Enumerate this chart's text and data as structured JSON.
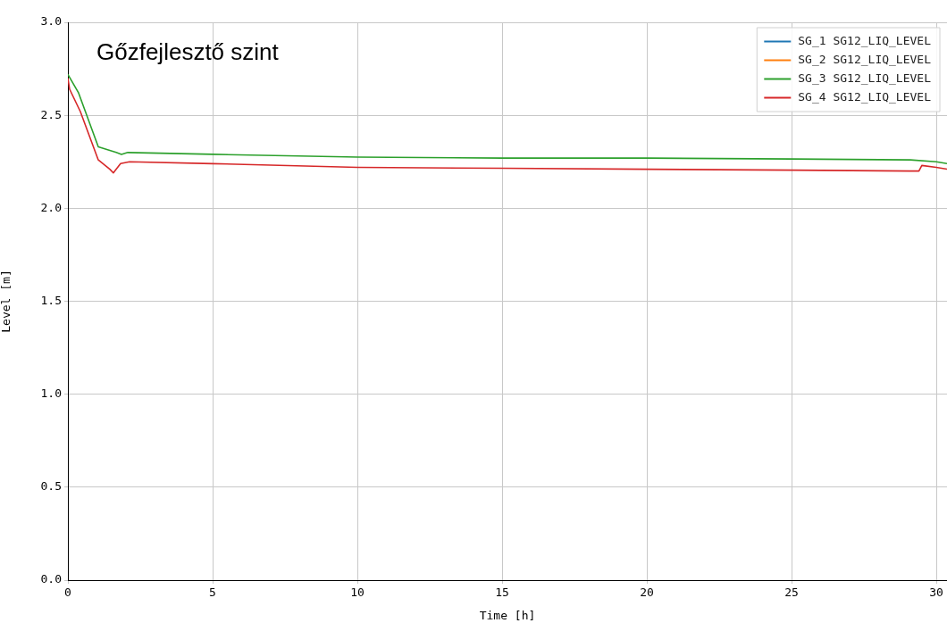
{
  "chart_data": {
    "type": "line",
    "title": "Gőzfejlesztő szint",
    "xlabel": "Time [h]",
    "ylabel": "Level [m]",
    "xlim": [
      0,
      30.37
    ],
    "xticks": [
      0,
      5,
      10,
      15,
      20,
      25,
      30
    ],
    "ylim": [
      0,
      3
    ],
    "yticks": [
      {
        "value": 0,
        "label": "0.0"
      },
      {
        "value": 0.5,
        "label": "0.5"
      },
      {
        "value": 1,
        "label": "1.0"
      },
      {
        "value": 1.5,
        "label": "1.5"
      },
      {
        "value": 2,
        "label": "2.0"
      },
      {
        "value": 2.5,
        "label": "2.5"
      },
      {
        "value": 3,
        "label": "3.0"
      }
    ],
    "grid": true,
    "legend": "top right",
    "marker": "none",
    "line_style": "solid",
    "x": [
      0,
      0.37,
      1.05,
      1.67,
      1.85,
      2.07,
      5,
      10,
      15,
      20,
      25,
      29.1,
      30,
      30.37
    ],
    "series": [
      {
        "name": "SG_1 SG12_LIQ_LEVEL",
        "color": "#1f77b4",
        "values": [
          null,
          null,
          null,
          null,
          null,
          null,
          null,
          null,
          null,
          null,
          null,
          null,
          null,
          null
        ]
      },
      {
        "name": "SG_2 SG12_LIQ_LEVEL",
        "color": "#ff7f0e",
        "values": [
          null,
          null,
          null,
          null,
          null,
          null,
          null,
          null,
          null,
          null,
          null,
          null,
          null,
          null
        ]
      },
      {
        "name": "SG_3 SG12_LIQ_LEVEL",
        "color": "#2ca02c",
        "values": [
          2.72,
          2.62,
          2.33,
          2.3,
          2.29,
          2.3,
          2.29,
          2.275,
          2.27,
          2.27,
          2.265,
          2.26,
          2.25,
          2.24
        ]
      },
      {
        "name": "SG_4 SG12_LIQ_LEVEL",
        "color": "#d62728",
        "x": [
          0,
          0.06,
          0.43,
          1.05,
          1.45,
          1.57,
          1.67,
          1.82,
          2.13,
          5,
          10,
          15,
          20,
          25,
          29.4,
          29.5,
          30,
          30.37
        ],
        "values": [
          2.7,
          2.64,
          2.52,
          2.26,
          2.21,
          2.19,
          2.21,
          2.24,
          2.25,
          2.24,
          2.22,
          2.215,
          2.21,
          2.205,
          2.2,
          2.23,
          2.22,
          2.21
        ]
      }
    ]
  }
}
